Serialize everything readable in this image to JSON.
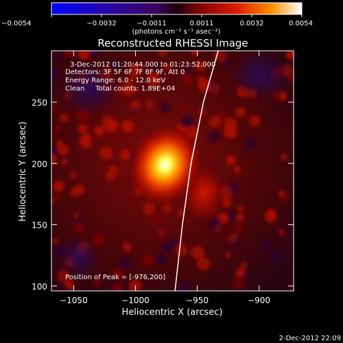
{
  "chart_data": {
    "type": "heatmap",
    "title": "Reconstructed RHESSI Image",
    "info_lines": [
      "3-Dec-2012 01:20:44.000 to 01:23:52.000",
      "Detectors: 3F 5F 6F 7F 8F 9F, Att 0",
      "Energy Range: 6.0 - 12.0 keV",
      "Clean     Total counts: 1.89E+04"
    ],
    "peak_label": "Position of Peak = [-976,200]",
    "xlabel": "Heliocentric X (arcsec)",
    "ylabel": "Heliocentric Y (arcsec)",
    "xlim": [
      -1068,
      -872
    ],
    "ylim": [
      96,
      292
    ],
    "x_ticks": [
      {
        "value": -1050,
        "label": "−1050"
      },
      {
        "value": -1000,
        "label": "−1000"
      },
      {
        "value": -950,
        "label": "−950"
      },
      {
        "value": -900,
        "label": "−900"
      }
    ],
    "y_ticks": [
      {
        "value": 100,
        "label": "100"
      },
      {
        "value": 150,
        "label": "150"
      },
      {
        "value": 200,
        "label": "200"
      },
      {
        "value": 250,
        "label": "250"
      }
    ],
    "peak": {
      "x": -976,
      "y": 200
    },
    "secondary_source": {
      "x": -945,
      "y": 175
    },
    "limb_curve": [
      [
        -933,
        292
      ],
      [
        -945,
        250
      ],
      [
        -955,
        200
      ],
      [
        -962,
        150
      ],
      [
        -968,
        96
      ]
    ],
    "colorbar": {
      "min": -0.0054,
      "max": 0.0054,
      "ticks": [
        "−0.0054",
        "−0.0032",
        "−0.0011",
        "0.0011",
        "0.0032",
        "0.0054"
      ],
      "units": "(photons cm⁻² s⁻¹ asec⁻²)",
      "colors": [
        "#0000ff",
        "#2a00a0",
        "#3c0060",
        "#000000",
        "#8a0000",
        "#e02000",
        "#ff9000",
        "#ffffff"
      ]
    }
  },
  "footer": {
    "timestamp": "2-Dec-2012 22:09"
  }
}
